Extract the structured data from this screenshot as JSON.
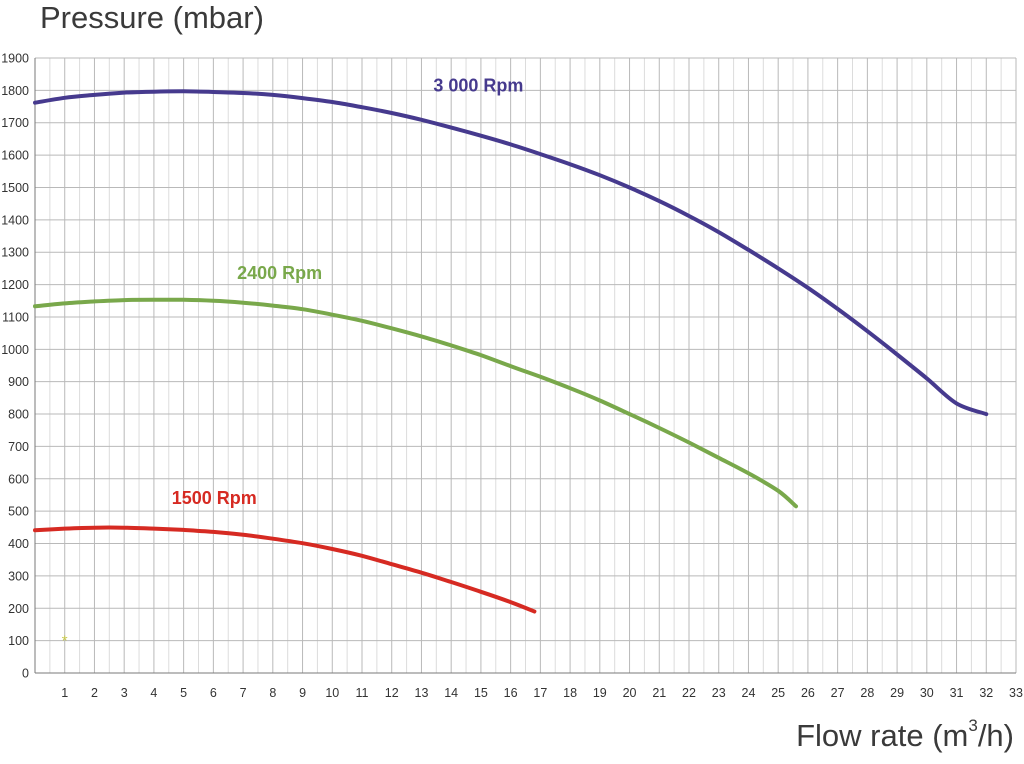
{
  "chart_data": {
    "type": "line",
    "ylabel": "Pressure (mbar)",
    "xlabel_main": "Flow rate (m",
    "xlabel_sup": "3",
    "xlabel_end": "/h)",
    "xlim": [
      0,
      33
    ],
    "ylim": [
      0,
      1900
    ],
    "x_ticks": [
      1,
      2,
      3,
      4,
      5,
      6,
      7,
      8,
      9,
      10,
      11,
      12,
      13,
      14,
      15,
      16,
      17,
      18,
      19,
      20,
      21,
      22,
      23,
      24,
      25,
      26,
      27,
      28,
      29,
      30,
      31,
      32,
      33
    ],
    "y_ticks": [
      0,
      100,
      200,
      300,
      400,
      500,
      600,
      700,
      800,
      900,
      1000,
      1100,
      1200,
      1300,
      1400,
      1500,
      1600,
      1700,
      1800,
      1900
    ],
    "grid": true,
    "series": [
      {
        "name": "3 000 Rpm",
        "color": "#463a8e",
        "label_at": [
          13.4,
          1797
        ],
        "points": [
          [
            0,
            1762
          ],
          [
            1,
            1777
          ],
          [
            2,
            1786
          ],
          [
            3,
            1793
          ],
          [
            4,
            1796
          ],
          [
            5,
            1797
          ],
          [
            6,
            1795
          ],
          [
            7,
            1792
          ],
          [
            8,
            1786
          ],
          [
            9,
            1776
          ],
          [
            10,
            1764
          ],
          [
            11,
            1748
          ],
          [
            12,
            1730
          ],
          [
            13,
            1709
          ],
          [
            14,
            1685
          ],
          [
            15,
            1660
          ],
          [
            16,
            1633
          ],
          [
            17,
            1603
          ],
          [
            18,
            1572
          ],
          [
            19,
            1538
          ],
          [
            20,
            1500
          ],
          [
            21,
            1458
          ],
          [
            22,
            1412
          ],
          [
            23,
            1362
          ],
          [
            24,
            1307
          ],
          [
            25,
            1250
          ],
          [
            26,
            1190
          ],
          [
            27,
            1125
          ],
          [
            28,
            1056
          ],
          [
            29,
            984
          ],
          [
            30,
            910
          ],
          [
            31,
            833
          ],
          [
            32,
            800
          ]
        ]
      },
      {
        "name": "2400 Rpm",
        "color": "#79a84b",
        "label_at": [
          6.8,
          1218
        ],
        "points": [
          [
            0,
            1133
          ],
          [
            1,
            1142
          ],
          [
            2,
            1148
          ],
          [
            3,
            1152
          ],
          [
            4,
            1153
          ],
          [
            5,
            1153
          ],
          [
            6,
            1150
          ],
          [
            7,
            1144
          ],
          [
            8,
            1135
          ],
          [
            9,
            1124
          ],
          [
            10,
            1107
          ],
          [
            11,
            1088
          ],
          [
            12,
            1065
          ],
          [
            13,
            1040
          ],
          [
            14,
            1012
          ],
          [
            15,
            982
          ],
          [
            16,
            948
          ],
          [
            17,
            915
          ],
          [
            18,
            880
          ],
          [
            19,
            842
          ],
          [
            20,
            800
          ],
          [
            21,
            757
          ],
          [
            22,
            712
          ],
          [
            23,
            665
          ],
          [
            24,
            617
          ],
          [
            25,
            563
          ],
          [
            25.6,
            515
          ]
        ]
      },
      {
        "name": "1500 Rpm",
        "color": "#d62a22",
        "label_at": [
          4.6,
          522
        ],
        "points": [
          [
            0,
            441
          ],
          [
            1,
            446
          ],
          [
            2,
            449
          ],
          [
            3,
            449
          ],
          [
            4,
            446
          ],
          [
            5,
            442
          ],
          [
            6,
            436
          ],
          [
            7,
            427
          ],
          [
            8,
            415
          ],
          [
            9,
            401
          ],
          [
            10,
            383
          ],
          [
            11,
            362
          ],
          [
            12,
            336
          ],
          [
            13,
            310
          ],
          [
            14,
            281
          ],
          [
            15,
            251
          ],
          [
            16,
            219
          ],
          [
            16.8,
            190
          ]
        ]
      }
    ],
    "marker": {
      "symbol": "*",
      "x": 1,
      "y": 100,
      "color": "#c9c94a"
    }
  }
}
